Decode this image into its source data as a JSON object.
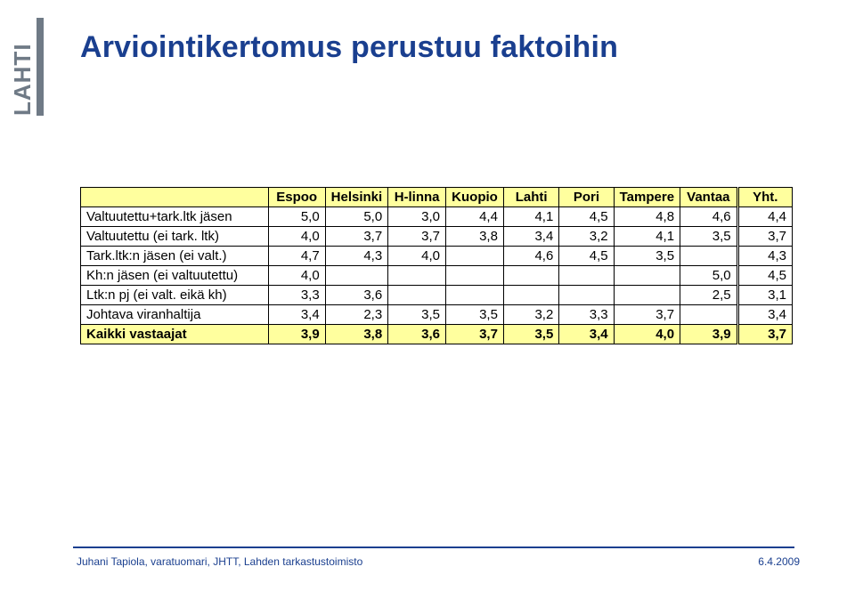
{
  "title": {
    "text": "Arviointikertomus perustuu faktoihin",
    "color": "#1a3f8f",
    "fontsize": 34
  },
  "logo": {
    "letters": "LAHTI",
    "fill": "#6f7a86",
    "bar_fill": "#6f7a86",
    "text_fill": "#6f7a86"
  },
  "table": {
    "header_bg": "#ffff9e",
    "summary_bg": "#ffff9e",
    "border_color": "#000000",
    "fontsize": 15,
    "columns": [
      "",
      "Espoo",
      "Helsinki",
      "H-linna",
      "Kuopio",
      "Lahti",
      "Pori",
      "Tampere",
      "Vantaa",
      "Yht."
    ],
    "rows": [
      {
        "label": "Valtuutettu+tark.ltk jäsen",
        "cells": [
          "5,0",
          "5,0",
          "3,0",
          "4,4",
          "4,1",
          "4,5",
          "4,8",
          "4,6",
          "4,4"
        ]
      },
      {
        "label": "Valtuutettu (ei tark. ltk)",
        "cells": [
          "4,0",
          "3,7",
          "3,7",
          "3,8",
          "3,4",
          "3,2",
          "4,1",
          "3,5",
          "3,7"
        ]
      },
      {
        "label": "Tark.ltk:n jäsen (ei valt.)",
        "cells": [
          "4,7",
          "4,3",
          "4,0",
          "",
          "4,6",
          "4,5",
          "3,5",
          "",
          "4,3"
        ]
      },
      {
        "label": "Kh:n jäsen (ei valtuutettu)",
        "cells": [
          "4,0",
          "",
          "",
          "",
          "",
          "",
          "",
          "5,0",
          "4,5"
        ]
      },
      {
        "label": "Ltk:n pj (ei valt. eikä kh)",
        "cells": [
          "3,3",
          "3,6",
          "",
          "",
          "",
          "",
          "",
          "2,5",
          "3,1"
        ]
      },
      {
        "label": "Johtava viranhaltija",
        "cells": [
          "3,4",
          "2,3",
          "3,5",
          "3,5",
          "3,2",
          "3,3",
          "3,7",
          "",
          "3,4"
        ]
      }
    ],
    "summary": {
      "label": "Kaikki vastaajat",
      "cells": [
        "3,9",
        "3,8",
        "3,6",
        "3,7",
        "3,5",
        "3,4",
        "4,0",
        "3,9",
        "3,7"
      ]
    }
  },
  "footer": {
    "line_color": "#1a3f8f",
    "left": "Juhani Tapiola, varatuomari, JHTT, Lahden tarkastustoimisto",
    "right": "6.4.2009",
    "text_color": "#1a3f8f"
  }
}
